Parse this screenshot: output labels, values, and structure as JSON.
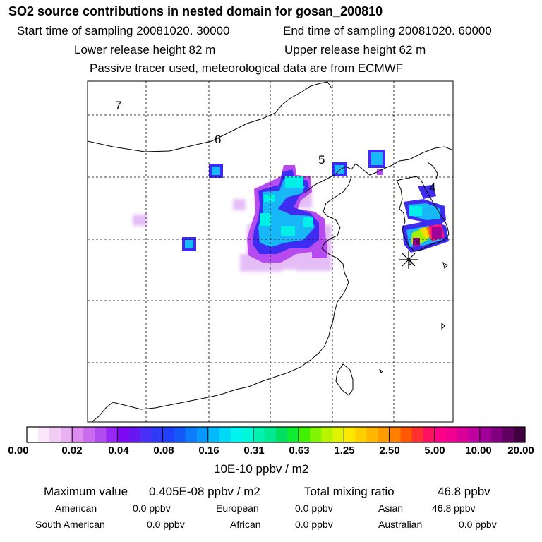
{
  "header": {
    "title": "SO2 source contributions in nested domain for gosan_200810",
    "start_label": "Start time of sampling 20081020. 30000",
    "end_label": "End time of sampling 20081020. 60000",
    "lower_label": "Lower release height   82 m",
    "upper_label": "Upper release height   62 m",
    "tracer_note": "Passive tracer used, meteorological data are from ECMWF"
  },
  "map": {
    "contour_labels": [
      "7",
      "6",
      "5",
      "4"
    ],
    "receptor_marker": "asterisk-icon"
  },
  "colorbar": {
    "tick_labels": [
      "0.00",
      "0.02",
      "0.04",
      "0.08",
      "0.16",
      "0.31",
      "0.63",
      "1.25",
      "2.50",
      "5.00",
      "10.00",
      "20.00"
    ],
    "units": "10E-10 ppbv / m2",
    "colors": [
      "#ffffff",
      "#fce6fc",
      "#f3ccf6",
      "#e9b0f2",
      "#dc8cf0",
      "#c96cf0",
      "#b04cf0",
      "#9826f4",
      "#7e08f2",
      "#6618f0",
      "#4a30f6",
      "#2e3af8",
      "#2040fc",
      "#1458f8",
      "#0c7cfc",
      "#0898fc",
      "#04b8fc",
      "#00d8f8",
      "#00f4f0",
      "#00f8d8",
      "#00f0b0",
      "#00e890",
      "#00e060",
      "#10ec30",
      "#40f000",
      "#80f400",
      "#b8f400",
      "#e0f400",
      "#ffe800",
      "#ffd000",
      "#ffb800",
      "#ff9c00",
      "#ff8000",
      "#ff5800",
      "#ff3030",
      "#ff1060",
      "#ff0088",
      "#f00090",
      "#d80098",
      "#c000a0",
      "#a00098",
      "#800080",
      "#600060",
      "#400040"
    ]
  },
  "summary": {
    "max_label": "Maximum value",
    "max_value": "0.405E-08 ppbv / m2",
    "total_label": "Total mixing ratio",
    "total_value": "46.8 ppbv"
  },
  "regions": [
    {
      "name": "American",
      "value": "0.0 ppbv"
    },
    {
      "name": "European",
      "value": "0.0 ppbv"
    },
    {
      "name": "Asian",
      "value": "46.8 ppbv"
    },
    {
      "name": "South American",
      "value": "0.0 ppbv"
    },
    {
      "name": "African",
      "value": "0.0 ppbv"
    },
    {
      "name": "Australian",
      "value": "0.0 ppbv"
    }
  ]
}
